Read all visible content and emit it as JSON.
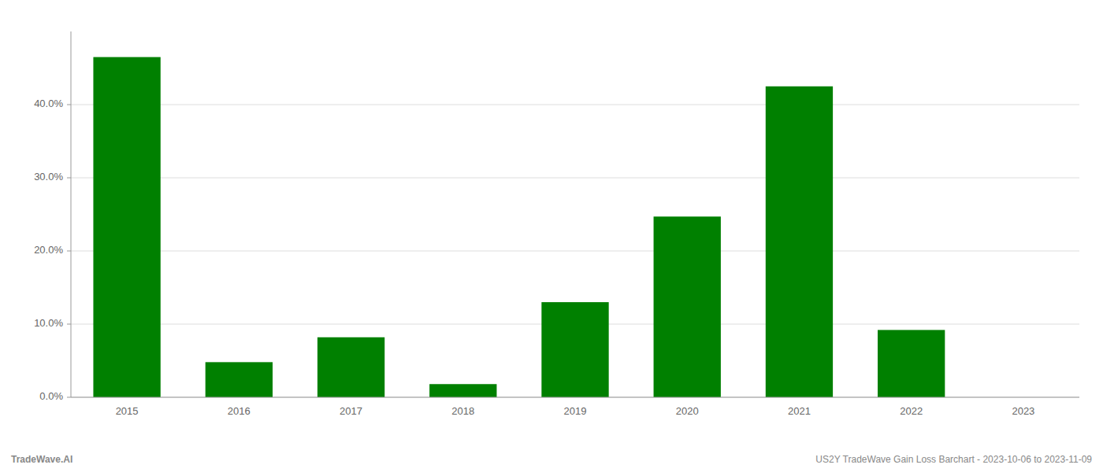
{
  "chart_data": {
    "type": "bar",
    "categories": [
      "2015",
      "2016",
      "2017",
      "2018",
      "2019",
      "2020",
      "2021",
      "2022",
      "2023"
    ],
    "values": [
      0.465,
      0.048,
      0.082,
      0.018,
      0.13,
      0.247,
      0.425,
      0.092,
      0.0
    ],
    "color": "#008000",
    "ylim": [
      0,
      0.5
    ],
    "yticks": [
      {
        "value": 0.0,
        "label": "0.0%"
      },
      {
        "value": 0.1,
        "label": "10.0%"
      },
      {
        "value": 0.2,
        "label": "20.0%"
      },
      {
        "value": 0.3,
        "label": "30.0%"
      },
      {
        "value": 0.4,
        "label": "40.0%"
      }
    ],
    "grid": true,
    "annotations": [
      "TradeWave.AI",
      "US2Y TradeWave Gain Loss Barchart - 2023-10-06 to 2023-11-09"
    ]
  }
}
